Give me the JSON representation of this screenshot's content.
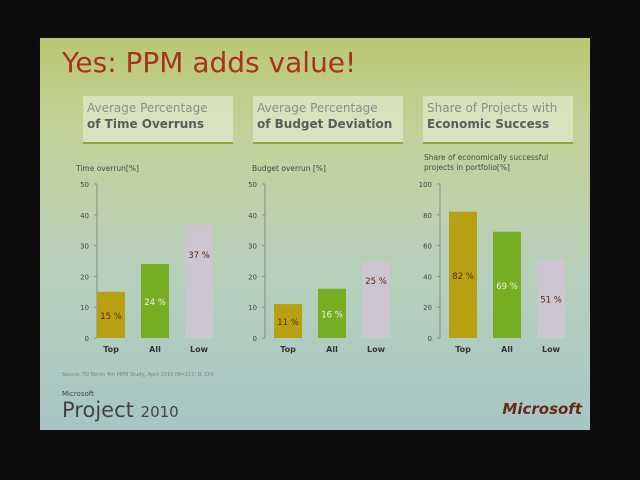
{
  "slide": {
    "title": "Yes: PPM adds value!",
    "source": "Source: TU Berlin 4th MPM Study, April 2010 (N=217, D, CH)",
    "logo_small": "Microsoft",
    "logo_product": "Project",
    "logo_year": "2010",
    "brand": "Microsoft"
  },
  "colors": {
    "Top": "#b8a012",
    "All": "#76ad22",
    "Low": "#cbc6cf",
    "title": "#a8321e"
  },
  "chart_data": [
    {
      "type": "bar",
      "title_line1": "Average Percentage",
      "title_line2": "of Time Overruns",
      "ylabel": "Time overrun[%]",
      "ylim": [
        0,
        50
      ],
      "yticks": [
        0,
        10,
        20,
        30,
        40,
        50
      ],
      "categories": [
        "Top",
        "All",
        "Low"
      ],
      "values": [
        15,
        24,
        37
      ],
      "labels": [
        "15 %",
        "24 %",
        "37 %"
      ]
    },
    {
      "type": "bar",
      "title_line1": "Average Percentage",
      "title_line2": "of Budget Deviation",
      "ylabel": "Budget overrun [%]",
      "ylim": [
        0,
        50
      ],
      "yticks": [
        0,
        10,
        20,
        30,
        40,
        50
      ],
      "categories": [
        "Top",
        "All",
        "Low"
      ],
      "values": [
        11,
        16,
        25
      ],
      "labels": [
        "11 %",
        "16 %",
        "25 %"
      ]
    },
    {
      "type": "bar",
      "title_line1": "Share of  Projects with",
      "title_line2": "Economic Success",
      "ylabel": "Share of economically successful projects in portfolio[%]",
      "ylim": [
        0,
        100
      ],
      "yticks": [
        0,
        20,
        40,
        60,
        80,
        100
      ],
      "categories": [
        "Top",
        "All",
        "Low"
      ],
      "values": [
        82,
        69,
        51
      ],
      "labels": [
        "82 %",
        "69 %",
        "51 %"
      ]
    }
  ]
}
